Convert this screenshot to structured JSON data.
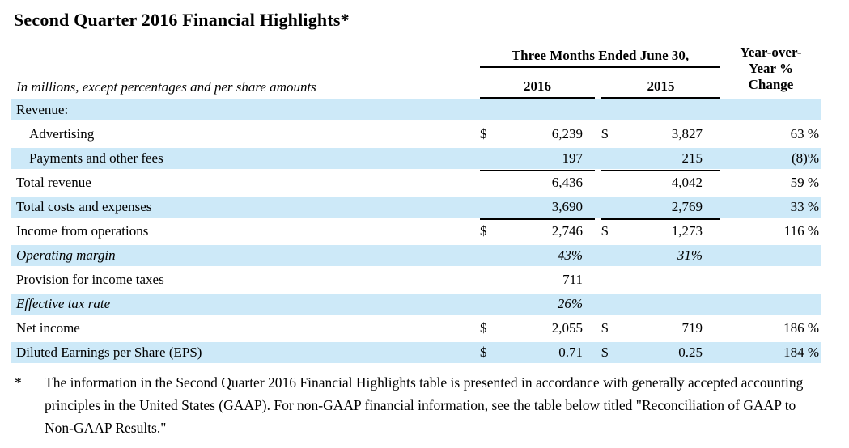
{
  "page": {
    "title": "Second Quarter 2016 Financial Highlights*"
  },
  "colors": {
    "row_highlight": "#cde9f8",
    "text": "#000000",
    "rule": "#000000"
  },
  "table": {
    "subtitle": "In millions, except percentages and per share amounts",
    "period_header": "Three Months Ended June 30,",
    "col_2016": "2016",
    "col_2015": "2015",
    "yoy_header": [
      "Year-over-",
      "Year %",
      "Change"
    ],
    "rows": [
      {
        "label": "Revenue:",
        "d1": "",
        "v2016": "",
        "d2": "",
        "v2015": "",
        "yoy": ""
      },
      {
        "label": "Advertising",
        "d1": "$",
        "v2016": "6,239",
        "d2": "$",
        "v2015": "3,827",
        "yoy": "63 %"
      },
      {
        "label": "Payments and other fees",
        "d1": "",
        "v2016": "197",
        "d2": "",
        "v2015": "215",
        "yoy": "(8)%"
      },
      {
        "label": "Total revenue",
        "d1": "",
        "v2016": "6,436",
        "d2": "",
        "v2015": "4,042",
        "yoy": "59 %"
      },
      {
        "label": "Total costs and expenses",
        "d1": "",
        "v2016": "3,690",
        "d2": "",
        "v2015": "2,769",
        "yoy": "33 %"
      },
      {
        "label": "Income from operations",
        "d1": "$",
        "v2016": "2,746",
        "d2": "$",
        "v2015": "1,273",
        "yoy": "116 %"
      },
      {
        "label": "Operating margin",
        "d1": "",
        "v2016": "43%",
        "d2": "",
        "v2015": "31%",
        "yoy": ""
      },
      {
        "label": "Provision for income taxes",
        "d1": "",
        "v2016": "711",
        "d2": "",
        "v2015": "",
        "yoy": ""
      },
      {
        "label": "Effective tax rate",
        "d1": "",
        "v2016": "26%",
        "d2": "",
        "v2015": "",
        "yoy": ""
      },
      {
        "label": "Net income",
        "d1": "$",
        "v2016": "2,055",
        "d2": "$",
        "v2015": "719",
        "yoy": "186 %"
      },
      {
        "label": "Diluted Earnings per Share (EPS)",
        "d1": "$",
        "v2016": "0.71",
        "d2": "$",
        "v2015": "0.25",
        "yoy": "184 %"
      }
    ]
  },
  "footnote": {
    "marker": "*",
    "text": "The information in the Second Quarter 2016 Financial Highlights table is presented in accordance with generally accepted accounting principles in the United States (GAAP). For non-GAAP financial information, see the table below titled \"Reconciliation of GAAP to Non-GAAP Results.\""
  }
}
